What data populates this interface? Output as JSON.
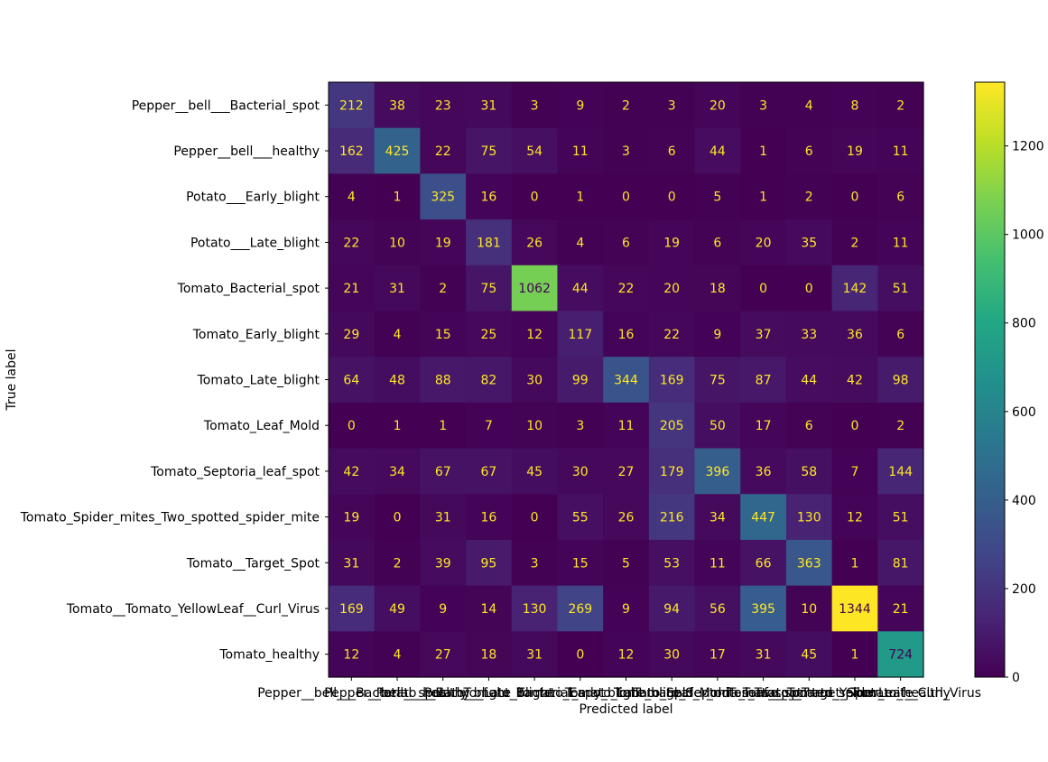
{
  "chart_data": {
    "type": "heatmap",
    "title": "",
    "xlabel": "Predicted label",
    "ylabel": "True label",
    "labels": [
      "Pepper__bell___Bacterial_spot",
      "Pepper__bell___healthy",
      "Potato___Early_blight",
      "Potato___Late_blight",
      "Tomato_Bacterial_spot",
      "Tomato_Early_blight",
      "Tomato_Late_blight",
      "Tomato_Leaf_Mold",
      "Tomato_Septoria_leaf_spot",
      "Tomato_Spider_mites_Two_spotted_spider_mite",
      "Tomato__Target_Spot",
      "Tomato__Tomato_YellowLeaf__Curl_Virus",
      "Tomato_healthy"
    ],
    "matrix": [
      [
        212,
        38,
        23,
        31,
        3,
        9,
        2,
        3,
        20,
        3,
        4,
        8,
        2
      ],
      [
        162,
        425,
        22,
        75,
        54,
        11,
        3,
        6,
        44,
        1,
        6,
        19,
        11
      ],
      [
        4,
        1,
        325,
        16,
        0,
        1,
        0,
        0,
        5,
        1,
        2,
        0,
        6
      ],
      [
        22,
        10,
        19,
        181,
        26,
        4,
        6,
        19,
        6,
        20,
        35,
        2,
        11
      ],
      [
        21,
        31,
        2,
        75,
        1062,
        44,
        22,
        20,
        18,
        0,
        0,
        142,
        51
      ],
      [
        29,
        4,
        15,
        25,
        12,
        117,
        16,
        22,
        9,
        37,
        33,
        36,
        6
      ],
      [
        64,
        48,
        88,
        82,
        30,
        99,
        344,
        169,
        75,
        87,
        44,
        42,
        98
      ],
      [
        0,
        1,
        1,
        7,
        10,
        3,
        11,
        205,
        50,
        17,
        6,
        0,
        2
      ],
      [
        42,
        34,
        67,
        67,
        45,
        30,
        27,
        179,
        396,
        36,
        58,
        7,
        144
      ],
      [
        19,
        0,
        31,
        16,
        0,
        55,
        26,
        216,
        34,
        447,
        130,
        12,
        51
      ],
      [
        31,
        2,
        39,
        95,
        3,
        15,
        5,
        53,
        11,
        66,
        363,
        1,
        81
      ],
      [
        169,
        49,
        9,
        14,
        130,
        269,
        9,
        94,
        56,
        395,
        10,
        1344,
        21
      ],
      [
        12,
        4,
        27,
        18,
        31,
        0,
        12,
        30,
        17,
        31,
        45,
        1,
        724
      ]
    ],
    "colormap": "viridis",
    "colorbar": {
      "vmin": 0,
      "vmax": 1344,
      "ticks": [
        0,
        200,
        400,
        600,
        800,
        1000,
        1200
      ]
    },
    "grid": false,
    "legend": "colorbar-right"
  },
  "colors": {
    "text_on_dark": "#fde725",
    "text_on_light": "#440154",
    "axis": "#000000"
  }
}
